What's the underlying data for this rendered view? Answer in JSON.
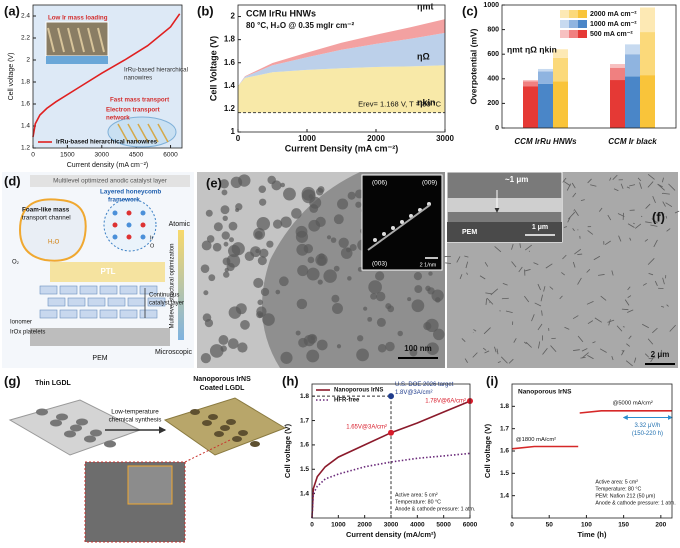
{
  "chart_data": [
    {
      "type": "line",
      "panel_label": "(a)",
      "xlabel": "Current density (mA cm⁻²)",
      "ylabel": "Cell voltage (V)",
      "xlim": [
        0,
        6500
      ],
      "xticks": [
        0,
        1500,
        3000,
        4500,
        6000
      ],
      "ylim": [
        1.2,
        2.5
      ],
      "yticks": [
        1.2,
        1.4,
        1.6,
        1.8,
        2.0,
        2.2,
        2.4
      ],
      "x": [
        0,
        100,
        300,
        600,
        1000,
        2000,
        3000,
        4000,
        5000,
        6000,
        6400
      ],
      "series": [
        {
          "name": "IrRu-based hierarchical nanowires",
          "color": "#e02020",
          "values": [
            1.3,
            1.42,
            1.5,
            1.56,
            1.62,
            1.75,
            1.88,
            2.0,
            2.13,
            2.3,
            2.42
          ]
        }
      ],
      "legend": "lower right",
      "background": "#dde9f6",
      "annotations": [
        "Low Ir mass loading",
        "IrRu-based hierarchical",
        "nanowires",
        "Fast mass transport",
        "Electron transport",
        "network"
      ]
    },
    {
      "type": "area",
      "panel_label": "(b)",
      "title": "CCM IrRu HNWs",
      "subtitle": "80 °C, H₂O  @ 0.35 mgIr cm⁻²",
      "xlabel": "Current Density (mA cm⁻²)",
      "ylabel": "Cell Voltage (V)",
      "xlim": [
        0,
        3000
      ],
      "xticks": [
        0,
        1000,
        2000,
        3000
      ],
      "ylim": [
        1.0,
        2.1
      ],
      "yticks": [
        1.0,
        1.2,
        1.4,
        1.6,
        1.8,
        2.0
      ],
      "erev": 1.168,
      "erev_label": "Erev= 1.168 V, T = 80 °C",
      "x": [
        0,
        100,
        500,
        1000,
        1500,
        2000,
        2500,
        3000
      ],
      "series": [
        {
          "name": "ηkin",
          "color": "#f8e9a8",
          "values": [
            0.23,
            0.3,
            0.35,
            0.37,
            0.385,
            0.395,
            0.4,
            0.41
          ]
        },
        {
          "name": "ηΩ",
          "color": "#bcd0ea",
          "values": [
            0,
            0.01,
            0.06,
            0.11,
            0.16,
            0.2,
            0.24,
            0.28
          ]
        },
        {
          "name": "ηmt",
          "color": "#f3a1a1",
          "values": [
            0,
            0.005,
            0.02,
            0.04,
            0.06,
            0.08,
            0.1,
            0.12
          ]
        }
      ]
    },
    {
      "type": "bar",
      "panel_label": "(c)",
      "ylabel": "Overpotential (mV)",
      "components": "ηmt ηΩ ηkin",
      "categories": [
        "CCM IrRu HNWs",
        "CCM Ir black"
      ],
      "ylim": [
        0,
        1000
      ],
      "yticks": [
        0,
        200,
        400,
        600,
        800,
        1000
      ],
      "series": [
        {
          "name": "500 mA cm⁻²",
          "colors": [
            "#e53935",
            "#f08080",
            "#f7c0c0"
          ],
          "kin": [
            340,
            390
          ],
          "ohm": [
            40,
            100
          ],
          "mt": [
            10,
            30
          ]
        },
        {
          "name": "1000 mA cm⁻²",
          "colors": [
            "#4a86c8",
            "#8fb4e0",
            "#c7daf0"
          ],
          "kin": [
            360,
            420
          ],
          "ohm": [
            100,
            180
          ],
          "mt": [
            20,
            80
          ]
        },
        {
          "name": "2000 mA cm⁻²",
          "colors": [
            "#f9c43a",
            "#fbd97a",
            "#fde9b4"
          ],
          "kin": [
            380,
            430
          ],
          "ohm": [
            190,
            350
          ],
          "mt": [
            70,
            200
          ]
        }
      ]
    },
    {
      "type": "line",
      "panel_label": "(h)",
      "xlabel": "Current density (mA/cm²)",
      "ylabel": "Cell voltage (V)",
      "xlim": [
        0,
        6000
      ],
      "xticks": [
        0,
        1000,
        2000,
        3000,
        4000,
        5000,
        6000
      ],
      "ylim": [
        1.3,
        1.85
      ],
      "yticks": [
        1.4,
        1.5,
        1.6,
        1.7,
        1.8
      ],
      "x": [
        0,
        50,
        200,
        500,
        1000,
        2000,
        3000,
        4000,
        5000,
        6000
      ],
      "series": [
        {
          "name": "Nanoporous IrNS",
          "color": "#8b1a2b",
          "values": [
            1.3,
            1.42,
            1.47,
            1.51,
            1.55,
            1.6,
            1.65,
            1.69,
            1.735,
            1.78
          ]
        },
        {
          "name": "HFR-free",
          "color": "#6a2a7a",
          "style": "dotted",
          "values": [
            1.3,
            1.4,
            1.43,
            1.46,
            1.48,
            1.51,
            1.53,
            1.545,
            1.555,
            1.565
          ]
        }
      ],
      "legend": "upper left",
      "points": [
        {
          "text": "1.65V@3A/cm²",
          "x": 3000,
          "y": 1.65,
          "color": "#d81b2a"
        },
        {
          "text": "1.78V@6A/cm²",
          "x": 6000,
          "y": 1.78,
          "color": "#d81b2a"
        },
        {
          "text": "1.8V@3A/cm²",
          "x": 3000,
          "y": 1.8,
          "color": "#1f3c8c"
        }
      ],
      "annotations": [
        "U.S. DOE 2026 target",
        "Active area: 5 cm²",
        "Temperature: 80 °C",
        "Anode & cathode pressure: 1 atm."
      ]
    },
    {
      "type": "line",
      "panel_label": "(i)",
      "xlabel": "Time (h)",
      "ylabel": "Cell voltage (V)",
      "xlim": [
        0,
        215
      ],
      "xticks": [
        0,
        50,
        100,
        150,
        200
      ],
      "ylim": [
        1.3,
        1.9
      ],
      "yticks": [
        1.4,
        1.5,
        1.6,
        1.7,
        1.8
      ],
      "x": [
        0,
        30,
        60,
        89,
        90,
        91,
        120,
        150,
        180,
        215
      ],
      "series": [
        {
          "name": "Nanoporous IrNS",
          "color": "#d62828",
          "values": [
            1.61,
            1.62,
            1.62,
            1.62,
            null,
            1.77,
            1.78,
            1.78,
            1.78,
            1.78
          ]
        }
      ],
      "annotations": [
        "@1800 mA/cm²",
        "@5000 mA/cm²",
        "3.32 μV/h",
        "(150-220 h)",
        "Active area: 5 cm²",
        "Temperature: 80 °C",
        "PEM: Nafion 212 (50 μm)",
        "Anode & cathode pressure: 1 atm."
      ]
    }
  ],
  "panels": {
    "d": {
      "label": "(d)",
      "texts": [
        "Multilevel optimized anodic catalyst layer",
        "Foam-like mass",
        "transport channel",
        "Layered honeycomb",
        "framework",
        "Atomic",
        "Multilevel structural optimization",
        "Microscopic",
        "PTL",
        "Continuous",
        "catalyst layer",
        "Ionomer",
        "IrOx platelets",
        "PEM",
        "H₂O",
        "O₂",
        "Ir",
        "O"
      ]
    },
    "e": {
      "label": "(e)",
      "texts": [
        "(006)",
        "(009)",
        "(003)",
        "2 1/nm",
        "100 nm"
      ]
    },
    "f": {
      "label": "(f)",
      "texts": [
        "~1 μm",
        "1 μm",
        "PEM",
        "2 μm"
      ]
    },
    "g": {
      "label": "(g)",
      "texts": [
        "Thin LGDL",
        "Nanoporous IrNS",
        "Coated LGDL",
        "Low-temperature",
        "chemical synthesis"
      ]
    }
  }
}
